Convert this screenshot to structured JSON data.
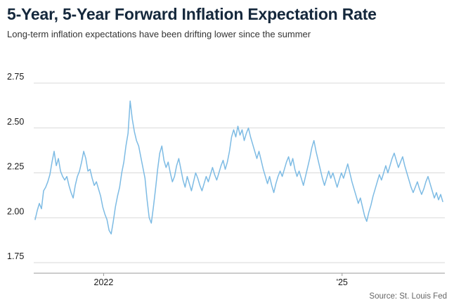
{
  "header": {
    "title": "5-Year, 5-Year Forward Inflation Expectation Rate",
    "subtitle": "Long-term inflation expectations have been drifting lower since the summer"
  },
  "footer": {
    "source": "Source: St. Louis Fed"
  },
  "colors": {
    "line": "#7dbbe4",
    "grid": "#d9d9d9",
    "axis": "#999999",
    "title_text": "#15283c",
    "tick_text": "#1a1a1a"
  },
  "chart_data": {
    "type": "line",
    "title": "5-Year, 5-Year Forward Inflation Expectation Rate",
    "xlabel": "",
    "ylabel": "",
    "ylim": [
      1.69,
      2.77
    ],
    "grid": "horizontal",
    "legend": "none",
    "y_ticks": [
      {
        "value": 2.75,
        "label": "2.75"
      },
      {
        "value": 2.5,
        "label": "2.50"
      },
      {
        "value": 2.25,
        "label": "2.25"
      },
      {
        "value": 2.0,
        "label": "2.00"
      },
      {
        "value": 1.75,
        "label": "1.75"
      }
    ],
    "x_ticks": [
      {
        "label": "2022",
        "pos": 0.17
      },
      {
        "label": "'25",
        "pos": 0.75
      }
    ],
    "series": [
      {
        "name": "5-Year, 5-Year Forward Inflation Expectation Rate (%)",
        "values": [
          1.99,
          2.04,
          2.08,
          2.05,
          2.15,
          2.17,
          2.2,
          2.24,
          2.31,
          2.37,
          2.29,
          2.33,
          2.26,
          2.23,
          2.21,
          2.23,
          2.18,
          2.14,
          2.11,
          2.18,
          2.23,
          2.26,
          2.31,
          2.37,
          2.33,
          2.26,
          2.27,
          2.22,
          2.18,
          2.2,
          2.16,
          2.12,
          2.06,
          2.02,
          1.99,
          1.93,
          1.91,
          1.98,
          2.06,
          2.12,
          2.17,
          2.25,
          2.31,
          2.4,
          2.47,
          2.65,
          2.55,
          2.48,
          2.43,
          2.4,
          2.34,
          2.28,
          2.22,
          2.1,
          2.0,
          1.97,
          2.06,
          2.16,
          2.27,
          2.36,
          2.4,
          2.32,
          2.28,
          2.31,
          2.25,
          2.2,
          2.23,
          2.29,
          2.33,
          2.27,
          2.21,
          2.17,
          2.23,
          2.19,
          2.15,
          2.2,
          2.25,
          2.22,
          2.18,
          2.15,
          2.19,
          2.23,
          2.2,
          2.24,
          2.28,
          2.24,
          2.21,
          2.25,
          2.29,
          2.32,
          2.27,
          2.31,
          2.37,
          2.45,
          2.49,
          2.45,
          2.51,
          2.46,
          2.49,
          2.43,
          2.47,
          2.5,
          2.45,
          2.41,
          2.37,
          2.33,
          2.37,
          2.32,
          2.27,
          2.23,
          2.19,
          2.23,
          2.18,
          2.14,
          2.19,
          2.23,
          2.26,
          2.23,
          2.27,
          2.31,
          2.34,
          2.29,
          2.33,
          2.27,
          2.23,
          2.26,
          2.22,
          2.18,
          2.23,
          2.28,
          2.33,
          2.39,
          2.43,
          2.37,
          2.32,
          2.27,
          2.22,
          2.18,
          2.22,
          2.26,
          2.22,
          2.25,
          2.21,
          2.17,
          2.21,
          2.25,
          2.22,
          2.26,
          2.3,
          2.25,
          2.2,
          2.16,
          2.12,
          2.08,
          2.11,
          2.06,
          2.01,
          1.98,
          2.03,
          2.07,
          2.12,
          2.16,
          2.2,
          2.24,
          2.21,
          2.25,
          2.29,
          2.25,
          2.29,
          2.33,
          2.36,
          2.32,
          2.28,
          2.31,
          2.34,
          2.29,
          2.25,
          2.21,
          2.17,
          2.14,
          2.17,
          2.2,
          2.16,
          2.13,
          2.16,
          2.2,
          2.23,
          2.19,
          2.15,
          2.11,
          2.14,
          2.1,
          2.13,
          2.09
        ]
      }
    ]
  }
}
